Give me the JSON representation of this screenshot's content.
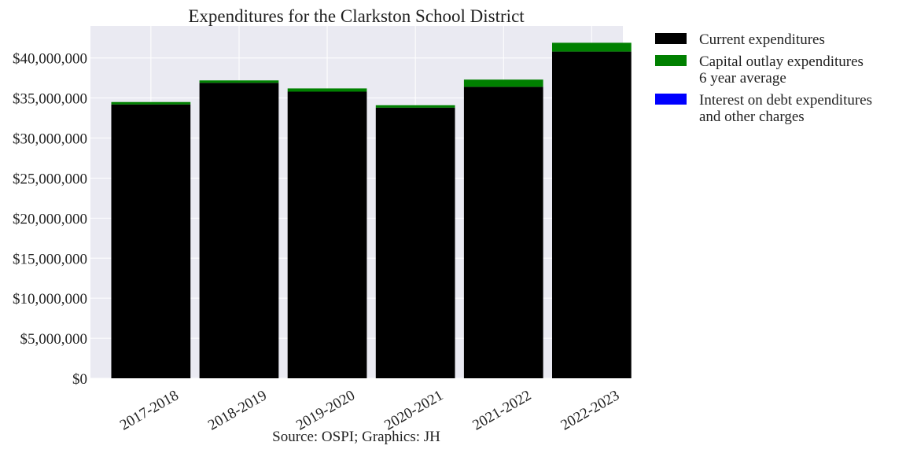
{
  "chart_data": {
    "type": "bar",
    "title": "Expenditures for the Clarkston School District",
    "caption": "Source: OSPI; Graphics: JH",
    "xlabel": "",
    "ylabel": "",
    "ylim": [
      0,
      44000000
    ],
    "y_ticks": [
      0,
      5000000,
      10000000,
      15000000,
      20000000,
      25000000,
      30000000,
      35000000,
      40000000
    ],
    "y_tick_labels": [
      "$0",
      "$5,000,000",
      "$10,000,000",
      "$15,000,000",
      "$20,000,000",
      "$25,000,000",
      "$30,000,000",
      "$35,000,000",
      "$40,000,000"
    ],
    "grid": true,
    "stacked": true,
    "legend_position": "outside-top-right",
    "categories": [
      "2017-2018",
      "2018-2019",
      "2019-2020",
      "2020-2021",
      "2021-2022",
      "2022-2023"
    ],
    "series": [
      {
        "name": "Current expenditures",
        "color": "#000000",
        "values": [
          34200000,
          36900000,
          35800000,
          33800000,
          36400000,
          40800000
        ]
      },
      {
        "name": "Capital outlay expenditures",
        "color": "#008000",
        "values": [
          300000,
          300000,
          400000,
          300000,
          900000,
          1100000
        ]
      },
      {
        "name": "Interest on debt expenditures",
        "color": "#0000ff",
        "values": [
          0,
          0,
          0,
          0,
          0,
          0
        ]
      }
    ],
    "legend_entries": [
      {
        "lines": [
          "Current expenditures"
        ],
        "color": "#000000"
      },
      {
        "lines": [
          "Capital outlay expenditures",
          "6 year average"
        ],
        "color": "#008000"
      },
      {
        "lines": [
          "Interest on debt expenditures",
          "and other charges"
        ],
        "color": "#0000ff"
      }
    ],
    "colors": {
      "plot_background": "#eaeaf2",
      "grid": "#ffffff",
      "text": "#222222"
    }
  }
}
